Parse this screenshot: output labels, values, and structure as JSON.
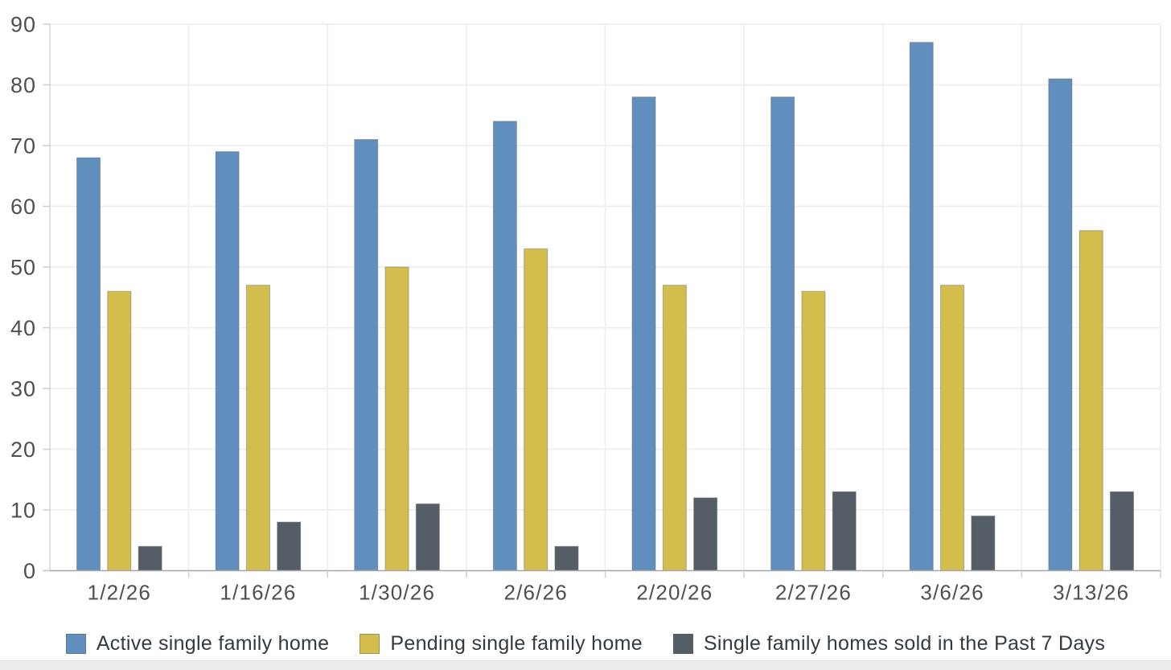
{
  "page": {
    "background": "#ffffff",
    "bottom_strip_color": "#ececec"
  },
  "chart_data": {
    "type": "bar",
    "title": "",
    "xlabel": "",
    "ylabel": "",
    "categories": [
      "1/2/26",
      "1/16/26",
      "1/30/26",
      "2/6/26",
      "2/20/26",
      "2/27/26",
      "3/6/26",
      "3/13/26"
    ],
    "series": [
      {
        "name": "Active single family home",
        "color": "#608FBE",
        "values": [
          68,
          69,
          71,
          74,
          78,
          78,
          87,
          81
        ]
      },
      {
        "name": "Pending single family home",
        "color": "#D3BE4D",
        "values": [
          46,
          47,
          50,
          53,
          47,
          46,
          47,
          56
        ]
      },
      {
        "name": "Single family homes sold in the Past 7 Days",
        "color": "#555E66",
        "values": [
          4,
          8,
          11,
          4,
          12,
          13,
          9,
          13
        ]
      }
    ],
    "ylim": [
      0,
      90
    ],
    "y_ticks": [
      0,
      10,
      20,
      30,
      40,
      50,
      60,
      70,
      80,
      90
    ],
    "grid": "light horizontal gridlines at each y tick and vertical gridlines at category boundaries",
    "legend_position": "bottom-center"
  },
  "style": {
    "axis_label_color": "#4f4f4f",
    "gridline_color": "#f0f0f0",
    "axis_line_color": "#d6d6d6",
    "zero_line_color": "#a6a6a6",
    "tick_color": "#cfcfcf",
    "bar_stroke": "rgba(110,110,110,0.5)"
  }
}
